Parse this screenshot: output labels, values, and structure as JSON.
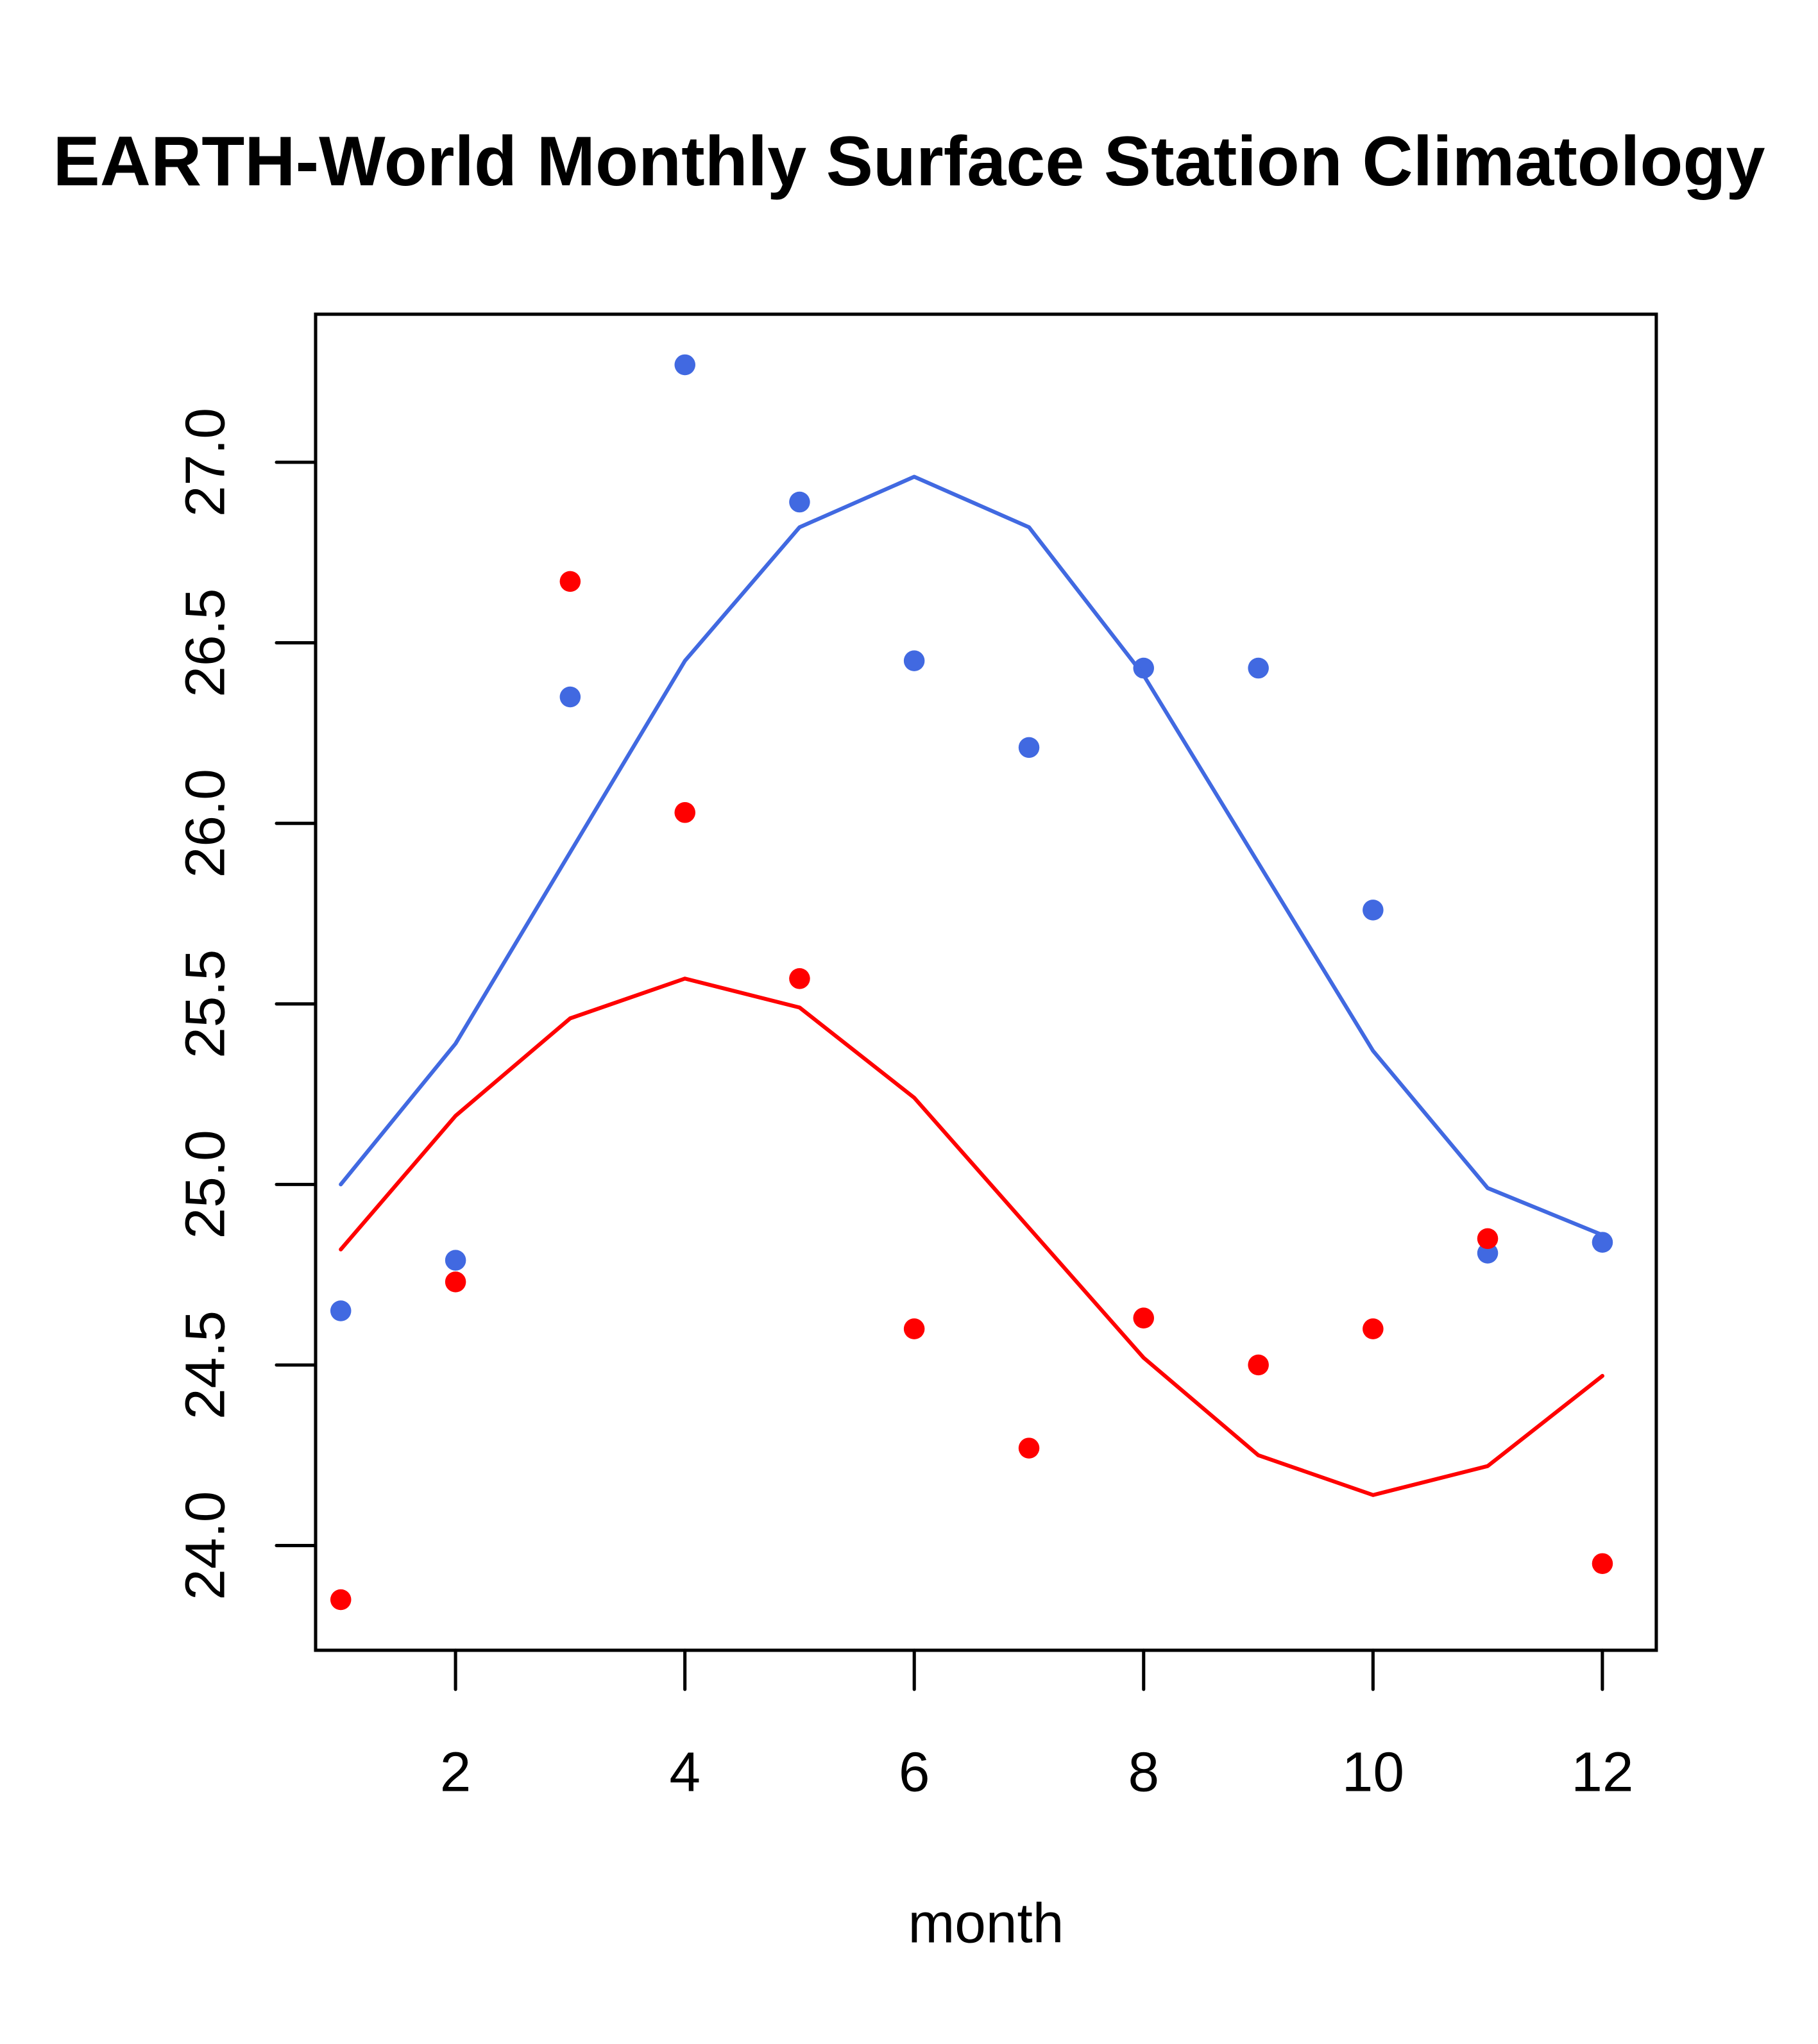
{
  "chart_data": {
    "type": "scatter",
    "title": "EARTH-World Monthly Surface Station Climatology",
    "xlabel": "month",
    "ylabel": "",
    "xlim": [
      0.78,
      12.47
    ],
    "ylim": [
      23.71,
      27.41
    ],
    "x_ticks": [
      2,
      4,
      6,
      8,
      10,
      12
    ],
    "x_tick_labels": [
      "2",
      "4",
      "6",
      "8",
      "10",
      "12"
    ],
    "y_ticks": [
      24.0,
      24.5,
      25.0,
      25.5,
      26.0,
      26.5,
      27.0
    ],
    "y_tick_labels": [
      "24.0",
      "24.5",
      "25.0",
      "25.5",
      "26.0",
      "26.5",
      "27.0"
    ],
    "grid": false,
    "legend": null,
    "x": [
      1,
      2,
      3,
      4,
      5,
      6,
      7,
      8,
      9,
      10,
      11,
      12
    ],
    "series": [
      {
        "name": "blue-points",
        "kind": "points",
        "color": "#4169E1",
        "values": [
          24.65,
          24.79,
          26.35,
          27.27,
          26.89,
          26.45,
          26.21,
          26.43,
          26.43,
          25.76,
          24.81,
          24.84
        ]
      },
      {
        "name": "red-points",
        "kind": "points",
        "color": "#FF0000",
        "values": [
          23.85,
          24.73,
          26.67,
          26.03,
          25.57,
          24.6,
          24.27,
          24.63,
          24.5,
          24.6,
          24.85,
          23.95
        ]
      },
      {
        "name": "blue-line",
        "kind": "line",
        "color": "#4169E1",
        "values": [
          25.0,
          25.39,
          25.92,
          26.45,
          26.82,
          26.96,
          26.82,
          26.41,
          25.89,
          25.37,
          24.99,
          24.86
        ]
      },
      {
        "name": "red-line",
        "kind": "line",
        "color": "#FF0000",
        "values": [
          24.82,
          25.19,
          25.46,
          25.57,
          25.49,
          25.24,
          24.88,
          24.52,
          24.25,
          24.14,
          24.22,
          24.47
        ]
      }
    ]
  }
}
